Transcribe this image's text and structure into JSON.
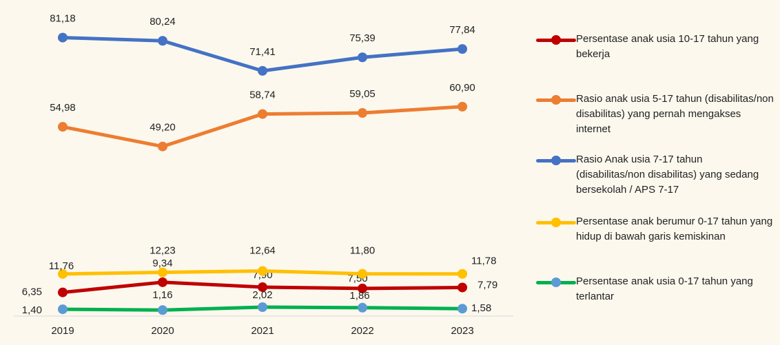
{
  "chart_data": {
    "type": "line",
    "categories": [
      "2019",
      "2020",
      "2021",
      "2022",
      "2023"
    ],
    "ylim": [
      0,
      90
    ],
    "series": [
      {
        "name": "Persentase anak usia 10-17 tahun yang bekerja",
        "color": "#C00000",
        "marker_color": "#C00000",
        "values": [
          6.35,
          9.34,
          7.9,
          7.5,
          7.79
        ],
        "value_labels": [
          "6,35",
          "9,34",
          "7,90",
          "7,50",
          "7,79"
        ]
      },
      {
        "name": "Rasio anak usia 5-17 tahun (disabilitas/non disabilitas) yang pernah mengakses internet",
        "color": "#ED7D31",
        "marker_color": "#ED7D31",
        "values": [
          54.98,
          49.2,
          58.74,
          59.05,
          60.9
        ],
        "value_labels": [
          "54,98",
          "49,20",
          "58,74",
          "59,05",
          "60,90"
        ]
      },
      {
        "name": "Rasio Anak usia 7-17 tahun (disabilitas/non disabilitas) yang sedang bersekolah / APS 7-17",
        "color": "#4472C4",
        "marker_color": "#4472C4",
        "values": [
          81.18,
          80.24,
          71.41,
          75.39,
          77.84
        ],
        "value_labels": [
          "81,18",
          "80,24",
          "71,41",
          "75,39",
          "77,84"
        ]
      },
      {
        "name": "Persentase anak berumur 0-17 tahun yang hidup di bawah garis kemiskinan",
        "color": "#FFC000",
        "marker_color": "#FFC000",
        "values": [
          11.76,
          12.23,
          12.64,
          11.8,
          11.78
        ],
        "value_labels": [
          "11,76",
          "12,23",
          "12,64",
          "11,80",
          "11,78"
        ]
      },
      {
        "name": "Persentase anak usia 0-17 tahun yang terlantar",
        "color": "#00B050",
        "marker_color": "#5B9BD5",
        "values": [
          1.4,
          1.16,
          2.02,
          1.86,
          1.58
        ],
        "value_labels": [
          "1,40",
          "1,16",
          "2,02",
          "1,86",
          "1,58"
        ]
      }
    ]
  }
}
